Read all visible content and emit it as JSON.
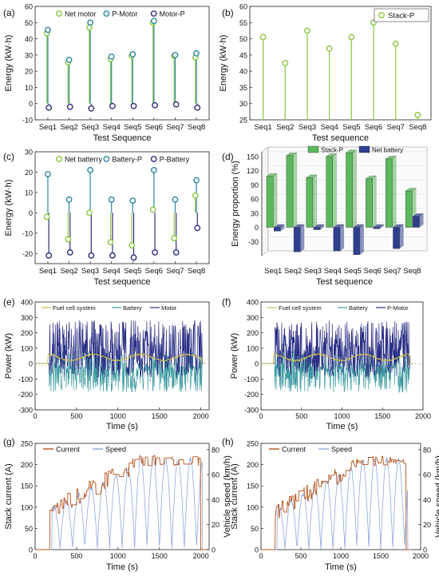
{
  "figure": {
    "panel_letters": [
      "(a)",
      "(b)",
      "(c)",
      "(d)",
      "(e)",
      "(f)",
      "(g)",
      "(h)"
    ]
  },
  "chart_data": [
    {
      "panel": "(a)",
      "type": "scatter",
      "style": "lollipop",
      "categories": [
        "Seq1",
        "Seq2",
        "Seq3",
        "Seq4",
        "Seq5",
        "Seq6",
        "Seq7",
        "Seq8"
      ],
      "series": [
        {
          "name": "Net motor",
          "color": "#8cc63f",
          "values": [
            43.5,
            25.5,
            47.0,
            27.5,
            29.5,
            50.0,
            29.5,
            28.5
          ]
        },
        {
          "name": "P-Motor",
          "color": "#2f86a6",
          "values": [
            45.5,
            27.0,
            50.0,
            29.0,
            30.5,
            51.0,
            30.0,
            31.0
          ]
        },
        {
          "name": "Motor-P",
          "color": "#2b2f7a",
          "values": [
            -2.5,
            -2.0,
            -3.0,
            -1.5,
            -1.5,
            -1.0,
            -0.5,
            -2.5
          ]
        }
      ],
      "xlabel": "Test Sequence",
      "ylabel": "Energy (kW·h)",
      "ylim": [
        -10,
        60
      ],
      "yticks": [
        -10,
        0,
        10,
        20,
        30,
        40,
        50,
        60
      ],
      "legend": "top"
    },
    {
      "panel": "(b)",
      "type": "scatter",
      "style": "lollipop",
      "categories": [
        "Seq1",
        "Seq2",
        "Seq3",
        "Seq4",
        "Seq5",
        "Seq6",
        "Seq7",
        "Seq8"
      ],
      "series": [
        {
          "name": "Stack-P",
          "color": "#8cc63f",
          "values": [
            50.5,
            42.5,
            52.5,
            47.0,
            50.5,
            55.0,
            48.5,
            26.5
          ]
        }
      ],
      "xlabel": "Test sequence",
      "ylabel": "Energy (kW·h)",
      "ylim": [
        25,
        60
      ],
      "yticks": [
        25,
        30,
        35,
        40,
        45,
        50,
        55,
        60
      ],
      "legend": "top-right"
    },
    {
      "panel": "(c)",
      "type": "scatter",
      "style": "lollipop",
      "categories": [
        "Seq1",
        "Seq2",
        "Seq3",
        "Seq4",
        "Seq5",
        "Seq6",
        "Seq7",
        "Seq8"
      ],
      "series": [
        {
          "name": "Net batterry",
          "color": "#8cc63f",
          "values": [
            -2.0,
            -13.0,
            0.0,
            -14.5,
            -16.0,
            1.5,
            -12.5,
            8.5
          ]
        },
        {
          "name": "Battery-P",
          "color": "#2f86a6",
          "values": [
            19.0,
            6.5,
            21.0,
            6.5,
            6.0,
            21.0,
            6.5,
            16.0
          ]
        },
        {
          "name": "P-Battery",
          "color": "#2b2f7a",
          "values": [
            -21.0,
            -19.5,
            -21.0,
            -21.0,
            -22.0,
            -19.5,
            -19.5,
            -7.5
          ]
        }
      ],
      "xlabel": "Test sequence",
      "ylabel": "Energy (kW·h)",
      "ylim": [
        -25,
        30
      ],
      "yticks": [
        -20,
        -10,
        0,
        10,
        20,
        30
      ],
      "legend": "top"
    },
    {
      "panel": "(d)",
      "type": "bar",
      "style": "3d",
      "categories": [
        "Seq1",
        "Seq2",
        "Seq3",
        "Seq4",
        "Seq5",
        "Seq6",
        "Seq7",
        "Seq8"
      ],
      "series": [
        {
          "name": "Stack-P",
          "color": "#5cb85c",
          "values": [
            108,
            152,
            105,
            150,
            158,
            103,
            145,
            77
          ]
        },
        {
          "name": "Net battery",
          "color": "#2e3f8f",
          "values": [
            -8,
            -52,
            -5,
            -50,
            -58,
            -3,
            -45,
            23
          ]
        }
      ],
      "xlabel": "Test sequence",
      "ylabel": "Energy proportion (%)",
      "ylim": [
        -60,
        160
      ],
      "yticks": [
        -30,
        0,
        30,
        60,
        90,
        120,
        150
      ],
      "legend": "top"
    },
    {
      "panel": "(e)",
      "type": "line",
      "series": [
        {
          "name": "Fuel cell system",
          "color": "#c9c24a"
        },
        {
          "name": "Battery",
          "color": "#3c9aa0"
        },
        {
          "name": "Motor",
          "color": "#2b2f85"
        }
      ],
      "xlabel": "Time (s)",
      "ylabel": "Power (kW)",
      "xlim": [
        0,
        2100
      ],
      "ylim": [
        -300,
        400
      ],
      "xticks": [
        0,
        500,
        1000,
        1500,
        2000
      ],
      "yticks": [
        -300,
        -200,
        -100,
        0,
        100,
        200,
        300,
        400
      ],
      "legend": "top"
    },
    {
      "panel": "(f)",
      "type": "line",
      "series": [
        {
          "name": "Fuel cell system",
          "color": "#c9c24a"
        },
        {
          "name": "Battery",
          "color": "#3c9aa0"
        },
        {
          "name": "P-Motor",
          "color": "#2b2f85"
        }
      ],
      "xlabel": "Time (s)",
      "ylabel": "Power (kW)",
      "xlim": [
        0,
        2000
      ],
      "ylim": [
        -300,
        400
      ],
      "xticks": [
        0,
        500,
        1000,
        1500,
        2000
      ],
      "yticks": [
        -300,
        -200,
        -100,
        0,
        100,
        200,
        300,
        400
      ],
      "legend": "top"
    },
    {
      "panel": "(g)",
      "type": "line",
      "series": [
        {
          "name": "Current",
          "color": "#b5541c"
        },
        {
          "name": "Speed",
          "color": "#8fa8e0"
        }
      ],
      "xlabel": "Time (s)",
      "ylabel": "Stack current (A)",
      "y2label": "Vehicle speed (km/h)",
      "xlim": [
        0,
        2100
      ],
      "ylim": [
        0,
        250
      ],
      "y2lim": [
        0,
        85
      ],
      "xticks": [
        0,
        500,
        1000,
        1500,
        2000
      ],
      "yticks": [
        0,
        50,
        100,
        150,
        200,
        250
      ],
      "y2ticks": [
        0,
        20,
        40,
        60,
        80
      ],
      "legend": "top"
    },
    {
      "panel": "(h)",
      "type": "line",
      "series": [
        {
          "name": "Current",
          "color": "#b5541c"
        },
        {
          "name": "Speed",
          "color": "#8fa8e0"
        }
      ],
      "xlabel": "Time (s)",
      "ylabel": "Stack current (A)",
      "y2label": "Vehicle speed (km/h)",
      "xlim": [
        0,
        2000
      ],
      "ylim": [
        0,
        250
      ],
      "y2lim": [
        0,
        85
      ],
      "xticks": [
        0,
        500,
        1000,
        1500,
        2000
      ],
      "yticks": [
        0,
        50,
        100,
        150,
        200,
        250
      ],
      "y2ticks": [
        0,
        20,
        40,
        60,
        80
      ],
      "legend": "top"
    }
  ]
}
